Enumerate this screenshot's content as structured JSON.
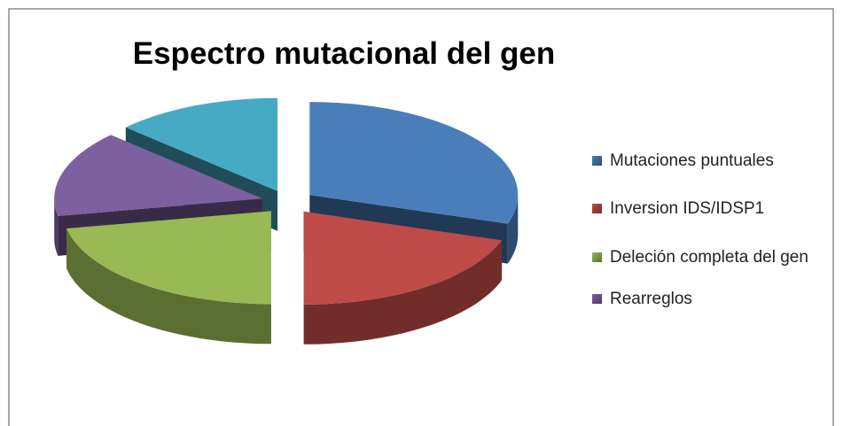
{
  "chart_data": {
    "type": "pie",
    "title": "Espectro mutacional del gen",
    "categories": [
      "Mutaciones puntuales",
      "Inversion IDS/IDSP1",
      "Deleción completa del gen",
      "Rearreglos",
      null
    ],
    "values": [
      30,
      20,
      22,
      15,
      13
    ],
    "colors": [
      "#4a7ebb",
      "#be4b48",
      "#98b954",
      "#7d60a0",
      "#46aac5"
    ],
    "legend": "right"
  }
}
